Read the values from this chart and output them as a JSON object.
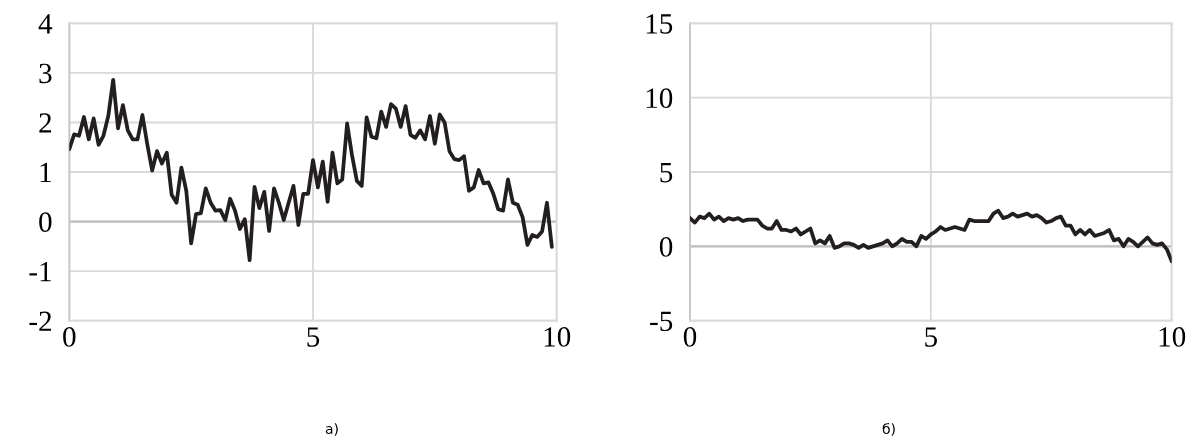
{
  "chart_data": [
    {
      "type": "line",
      "color": "#231f20",
      "x": [
        0.0,
        0.1,
        0.2,
        0.3,
        0.4,
        0.5,
        0.6,
        0.7,
        0.8,
        0.9,
        1.0,
        1.1,
        1.2,
        1.3,
        1.4,
        1.5,
        1.6,
        1.7,
        1.8,
        1.9,
        2.0,
        2.1,
        2.2,
        2.3,
        2.4,
        2.5,
        2.6,
        2.7,
        2.8,
        2.9,
        3.0,
        3.1,
        3.2,
        3.3,
        3.4,
        3.5,
        3.6,
        3.7,
        3.8,
        3.9,
        4.0,
        4.1,
        4.2,
        4.3,
        4.4,
        4.5,
        4.6,
        4.7,
        4.8,
        4.9,
        5.0,
        5.1,
        5.2,
        5.3,
        5.4,
        5.5,
        5.6,
        5.7,
        5.8,
        5.9,
        6.0,
        6.1,
        6.2,
        6.3,
        6.4,
        6.5,
        6.6,
        6.7,
        6.8,
        6.9,
        7.0,
        7.1,
        7.2,
        7.3,
        7.4,
        7.5,
        7.6,
        7.7,
        7.8,
        7.9,
        8.0,
        8.1,
        8.2,
        8.3,
        8.4,
        8.5,
        8.6,
        8.7,
        8.8,
        8.9,
        9.0,
        9.1,
        9.2,
        9.3,
        9.4,
        9.5,
        9.6,
        9.7,
        9.8,
        9.9
      ],
      "values": [
        1.46,
        1.76,
        1.73,
        2.11,
        1.66,
        2.08,
        1.55,
        1.73,
        2.13,
        2.86,
        1.88,
        2.35,
        1.84,
        1.66,
        1.66,
        2.15,
        1.56,
        1.03,
        1.42,
        1.17,
        1.39,
        0.54,
        0.38,
        1.09,
        0.62,
        -0.44,
        0.15,
        0.17,
        0.67,
        0.38,
        0.22,
        0.23,
        0.03,
        0.46,
        0.22,
        -0.15,
        0.05,
        -0.78,
        0.7,
        0.27,
        0.6,
        -0.19,
        0.67,
        0.38,
        0.03,
        0.38,
        0.72,
        -0.07,
        0.56,
        0.56,
        1.24,
        0.69,
        1.21,
        0.4,
        1.39,
        0.77,
        0.85,
        1.98,
        1.34,
        0.82,
        0.72,
        2.1,
        1.71,
        1.68,
        2.22,
        1.91,
        2.37,
        2.28,
        1.91,
        2.33,
        1.75,
        1.69,
        1.84,
        1.66,
        2.13,
        1.57,
        2.16,
        2.0,
        1.42,
        1.26,
        1.24,
        1.32,
        0.62,
        0.69,
        1.04,
        0.77,
        0.79,
        0.56,
        0.25,
        0.22,
        0.85,
        0.38,
        0.34,
        0.09,
        -0.47,
        -0.27,
        -0.31,
        -0.2,
        0.38,
        -0.51
      ],
      "xlim": [
        0,
        10
      ],
      "ylim": [
        -2,
        4
      ],
      "xticks": [
        0,
        5,
        10
      ],
      "yticks": [
        -2,
        -1,
        0,
        1,
        2,
        3,
        4
      ],
      "grid": true,
      "ref_lines": [
        {
          "axis": "y",
          "value": 0,
          "color": "#bfbfbf"
        }
      ],
      "annotations": [
        "а)"
      ]
    },
    {
      "type": "line",
      "color": "#231f20",
      "x": [
        0.0,
        0.1,
        0.2,
        0.3,
        0.4,
        0.5,
        0.6,
        0.7,
        0.8,
        0.9,
        1.0,
        1.1,
        1.2,
        1.3,
        1.4,
        1.5,
        1.6,
        1.7,
        1.8,
        1.9,
        2.0,
        2.1,
        2.2,
        2.3,
        2.4,
        2.5,
        2.6,
        2.7,
        2.8,
        2.9,
        3.0,
        3.1,
        3.2,
        3.3,
        3.4,
        3.5,
        3.6,
        3.7,
        3.8,
        3.9,
        4.0,
        4.1,
        4.2,
        4.3,
        4.4,
        4.5,
        4.6,
        4.7,
        4.8,
        4.9,
        5.0,
        5.1,
        5.2,
        5.3,
        5.4,
        5.5,
        5.6,
        5.7,
        5.8,
        5.9,
        6.0,
        6.1,
        6.2,
        6.3,
        6.4,
        6.5,
        6.6,
        6.7,
        6.8,
        6.9,
        7.0,
        7.1,
        7.2,
        7.3,
        7.4,
        7.5,
        7.6,
        7.7,
        7.8,
        7.9,
        8.0,
        8.1,
        8.2,
        8.3,
        8.4,
        8.5,
        8.6,
        8.7,
        8.8,
        8.9,
        9.0,
        9.1,
        9.2,
        9.3,
        9.4,
        9.5,
        9.6,
        9.7,
        9.8,
        9.9,
        10.0
      ],
      "values": [
        1.9,
        1.6,
        2.0,
        1.9,
        2.2,
        1.8,
        2.0,
        1.7,
        1.9,
        1.8,
        1.9,
        1.7,
        1.8,
        1.8,
        1.8,
        1.4,
        1.2,
        1.2,
        1.7,
        1.1,
        1.1,
        1.0,
        1.2,
        0.8,
        1.0,
        1.2,
        0.2,
        0.4,
        0.2,
        0.7,
        -0.1,
        0.0,
        0.2,
        0.2,
        0.1,
        -0.1,
        0.1,
        -0.1,
        0.0,
        0.1,
        0.2,
        0.4,
        0.0,
        0.2,
        0.5,
        0.3,
        0.3,
        0.0,
        0.7,
        0.5,
        0.8,
        1.0,
        1.3,
        1.1,
        1.2,
        1.3,
        1.2,
        1.1,
        1.8,
        1.7,
        1.7,
        1.7,
        1.7,
        2.2,
        2.4,
        1.9,
        2.0,
        2.2,
        2.0,
        2.1,
        2.2,
        2.0,
        2.1,
        1.9,
        1.6,
        1.7,
        1.9,
        2.0,
        1.4,
        1.4,
        0.8,
        1.1,
        0.8,
        1.1,
        0.7,
        0.8,
        0.9,
        1.1,
        0.4,
        0.5,
        0.0,
        0.5,
        0.3,
        0.0,
        0.3,
        0.6,
        0.2,
        0.1,
        0.2,
        -0.2,
        -1.0
      ],
      "xlim": [
        0,
        10
      ],
      "ylim": [
        -5,
        15
      ],
      "xticks": [
        0,
        5,
        10
      ],
      "yticks": [
        -5,
        0,
        5,
        10,
        15
      ],
      "grid": true,
      "ref_lines": [
        {
          "axis": "y",
          "value": 0,
          "color": "#bfbfbf"
        }
      ],
      "annotations": [
        "б)"
      ]
    }
  ]
}
